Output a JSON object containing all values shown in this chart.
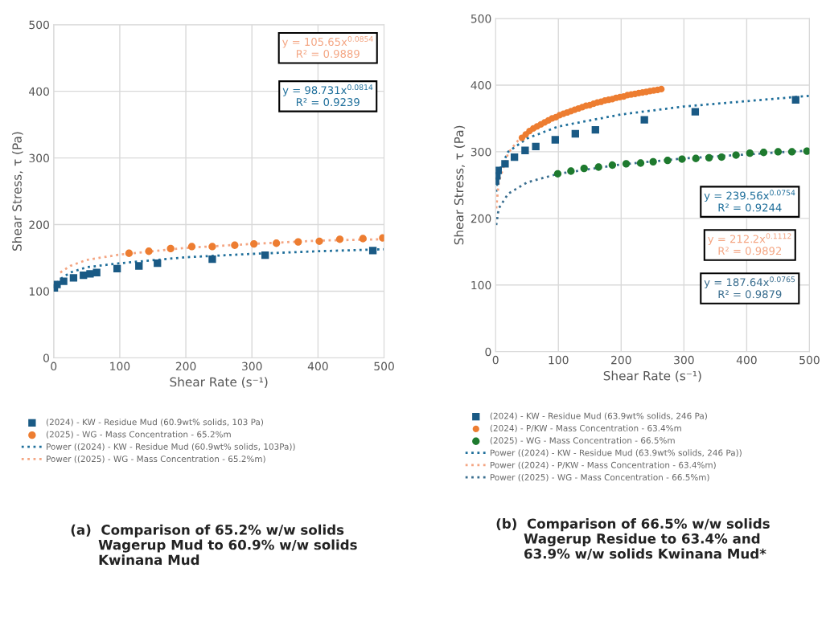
{
  "chart_data": [
    {
      "type": "scatter",
      "xlabel": "Shear Rate (s⁻¹)",
      "ylabel": "Shear Stress, τ (Pa)",
      "xlim": [
        0,
        500
      ],
      "ylim": [
        0,
        500
      ],
      "xticks": [
        0,
        100,
        200,
        300,
        400,
        500
      ],
      "yticks": [
        0,
        100,
        200,
        300,
        400,
        500
      ],
      "grid": true,
      "legend": "bottom",
      "series": [
        {
          "name": "(2024) - KW - Residue Mud (60.9wt% solids, 103 Pa)",
          "color": "#1a5a85",
          "marker": "square",
          "x": [
            1,
            5,
            15,
            30,
            45,
            55,
            65,
            96,
            129,
            157,
            240,
            320,
            483
          ],
          "values": [
            105,
            110,
            115,
            120,
            124,
            126,
            128,
            134,
            138,
            142,
            148,
            154,
            161
          ]
        },
        {
          "name": "(2025) - WG - Mass Concentration - 65.2%m",
          "color": "#ed7d31",
          "marker": "circle",
          "x": [
            114,
            144,
            177,
            209,
            240,
            274,
            303,
            337,
            370,
            402,
            433,
            468,
            498
          ],
          "values": [
            157,
            160,
            164,
            167,
            167,
            169,
            171,
            172,
            174,
            175,
            178,
            179,
            180
          ]
        },
        {
          "name": "Power ((2024) - KW - Residue Mud (60.9wt% solids, 103Pa))",
          "type": "line",
          "line_style": "dotted",
          "marker": "none",
          "color": "#1f6f9b",
          "x": [
            5,
            10,
            25,
            50,
            100,
            200,
            300,
            400,
            500
          ],
          "values": [
            112,
            118,
            128,
            136,
            142,
            151,
            156,
            160,
            163
          ]
        },
        {
          "name": "Power ((2025) - WG - Mass Concentration - 65.2%m)",
          "type": "line",
          "line_style": "dotted",
          "marker": "none",
          "color": "#f4a582",
          "x": [
            10,
            25,
            50,
            100,
            200,
            300,
            400,
            500
          ],
          "values": [
            128,
            138,
            147,
            155,
            165,
            171,
            176,
            178
          ]
        }
      ],
      "annotations": [
        "y = 105.65x$^{0.0854}$\nR² = 0.9889",
        "y = 98.731x$^{0.0814}$\nR² = 0.9239",
        "(a)  Comparison of 65.2% w/w solids\n      Wagerup Mud to 60.9% w/w solids\n      Kwinana Mud"
      ]
    },
    {
      "type": "scatter",
      "xlabel": "Shear Rate (s⁻¹)",
      "ylabel": "Shear Stress, τ (Pa)",
      "xlim": [
        0,
        500
      ],
      "ylim": [
        0,
        500
      ],
      "xticks": [
        0,
        100,
        200,
        300,
        400,
        500
      ],
      "yticks": [
        0,
        100,
        200,
        300,
        400,
        500
      ],
      "grid": true,
      "legend": "bottom",
      "series": [
        {
          "name": "(2024) - KW - Residue Mud (63.9wt% solids, 246 Pa)",
          "color": "#1a5a85",
          "marker": "square",
          "x": [
            0,
            2,
            4,
            15,
            30,
            47,
            64,
            95,
            127,
            159,
            237,
            318,
            478
          ],
          "values": [
            256,
            264,
            272,
            282,
            292,
            302,
            308,
            318,
            327,
            333,
            348,
            360,
            378
          ]
        },
        {
          "name": "(2024) - P/KW - Mass Concentration - 63.4%m",
          "color": "#ed7d31",
          "marker": "circle",
          "x": [
            42,
            48,
            54,
            60,
            66,
            72,
            78,
            84,
            90,
            96,
            102,
            108,
            114,
            120,
            126,
            132,
            138,
            144,
            150,
            156,
            162,
            168,
            174,
            180,
            186,
            192,
            198,
            204,
            210,
            216,
            222,
            228,
            234,
            240,
            246,
            252,
            258,
            264
          ],
          "values": [
            321,
            326,
            331,
            335,
            338,
            341,
            344,
            347,
            350,
            352,
            355,
            357,
            359,
            361,
            363,
            365,
            367,
            369,
            370,
            372,
            374,
            375,
            377,
            378,
            379,
            381,
            382,
            383,
            385,
            386,
            387,
            388,
            389,
            390,
            391,
            392,
            393,
            394
          ]
        },
        {
          "name": "(2025) - WG - Mass Concentration - 66.5%m",
          "color": "#1e7a2e",
          "marker": "circle",
          "x": [
            99,
            120,
            141,
            164,
            186,
            208,
            231,
            251,
            274,
            297,
            319,
            340,
            360,
            383,
            405,
            427,
            450,
            472,
            496
          ],
          "values": [
            267,
            271,
            275,
            277,
            280,
            282,
            283,
            285,
            287,
            289,
            290,
            291,
            292,
            295,
            298,
            299,
            300,
            300,
            301
          ]
        },
        {
          "name": "Power ((2024) - KW - Residue Mud (63.9wt% solids, 246 Pa))",
          "type": "line",
          "line_style": "dotted",
          "marker": "none",
          "color": "#1f6f9b",
          "x": [
            1,
            5,
            20,
            50,
            100,
            200,
            300,
            400,
            500
          ],
          "values": [
            240,
            270,
            300,
            320,
            338,
            356,
            368,
            376,
            384
          ]
        },
        {
          "name": "Power ((2024) - P/KW - Mass Concentration - 63.4%m)",
          "type": "line",
          "line_style": "dotted",
          "marker": "none",
          "color": "#f4a582",
          "x": [
            1,
            5,
            20,
            40,
            100,
            200,
            262
          ],
          "values": [
            215,
            255,
            298,
            322,
            355,
            383,
            394
          ]
        },
        {
          "name": "Power ((2025) - WG - Mass Concentration - 66.5%m)",
          "type": "line",
          "line_style": "dotted",
          "marker": "none",
          "color": "#3a6e8f",
          "x": [
            1,
            5,
            20,
            50,
            100,
            200,
            300,
            400,
            500
          ],
          "values": [
            190,
            215,
            237,
            254,
            267,
            281,
            290,
            296,
            302
          ]
        }
      ],
      "annotations": [
        "y = 239.56x$^{0.0754}$\nR² = 0.9244",
        "y = 212.2x$^{0.1112}$\nR² = 0.9892",
        "y = 187.64x$^{0.0765}$\nR² = 0.9879",
        "(b)  Comparison of 66.5% w/w solids\n      Wagerup Residue to 63.4% and\n      63.9% w/w solids Kwinana Mud*"
      ]
    }
  ]
}
